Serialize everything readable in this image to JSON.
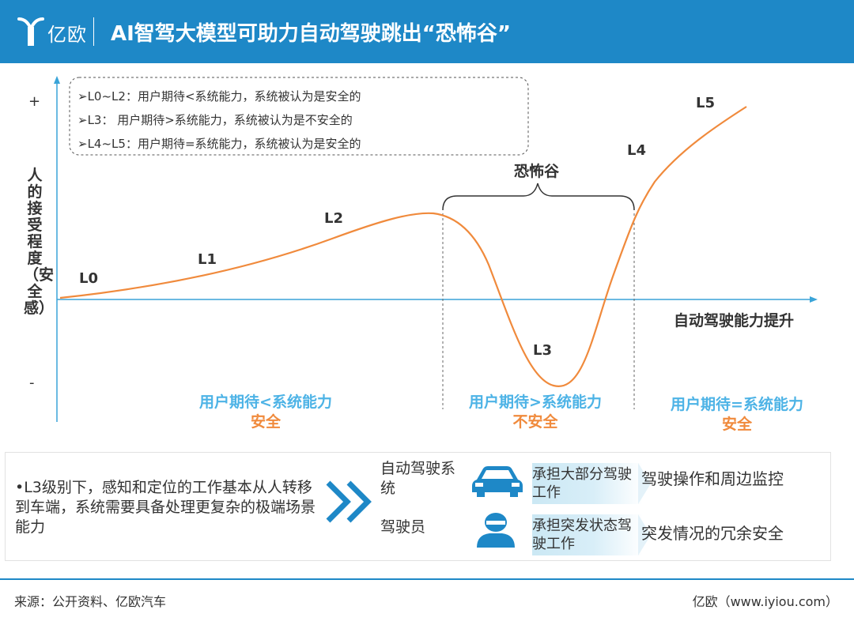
{
  "header": {
    "logo_text": "亿欧",
    "title": "AI智驾大模型可助力自动驾驶跳出“恐怖谷”"
  },
  "chart_data": {
    "type": "line",
    "y_axis": {
      "top_mark": "+",
      "bottom_mark": "-",
      "label": "人的接受程度（安全感）"
    },
    "x_axis": {
      "label": "自动驾驶能力提升"
    },
    "series": [
      {
        "name": "",
        "points": [
          {
            "x": 0,
            "y": 0
          },
          {
            "x": 1,
            "y": 0.6
          },
          {
            "x": 2,
            "y": 1.6
          },
          {
            "x": 2.9,
            "y": 2.0
          },
          {
            "x": 3.3,
            "y": 0.5
          },
          {
            "x": 3.7,
            "y": -2.0
          },
          {
            "x": 4.3,
            "y": -0.5
          },
          {
            "x": 4.7,
            "y": 2.0
          },
          {
            "x": 5.3,
            "y": 4.0
          }
        ]
      }
    ],
    "point_labels": [
      {
        "text": "L0",
        "x": 0.35,
        "y": 0.35
      },
      {
        "text": "L1",
        "x": 1.7,
        "y": 0.85
      },
      {
        "text": "L2",
        "x": 3.05,
        "y": 1.6
      },
      {
        "text": "L3",
        "x": 4.5,
        "y": -1.0
      },
      {
        "text": "L4",
        "x": 6.75,
        "y": 2.9
      },
      {
        "text": "L5",
        "x": 7.55,
        "y": 3.8
      }
    ],
    "legend": [
      "➢L0~L2：用户期待<系统能力，系统被认为是安全的",
      "➢L3：  用户期待>系统能力，系统被认为是不安全的",
      "➢L4~L5：用户期待=系统能力，系统被认为是安全的"
    ],
    "valley_label": "恐怖谷",
    "zones": [
      {
        "expectation": "用户期待<系统能力",
        "verdict": "安全"
      },
      {
        "expectation": "用户期待>系统能力",
        "verdict": "不安全"
      },
      {
        "expectation": "用户期待=系统能力",
        "verdict": "安全"
      }
    ],
    "colors": {
      "curve": "#f08a3c",
      "axis": "#3aa4d8",
      "zone_text": "#4db3e6",
      "verdict": "#f08a3c",
      "text": "#333333"
    }
  },
  "panel": {
    "note": "•L3级别下，感知和定位的工作基本从人转移到车端，系统需要具备处理更复杂的极端场景能力",
    "rows": [
      {
        "role": "自动驾驶系统",
        "icon": "car-icon",
        "task": "承担大部分驾驶工作",
        "desc": "驾驶操作和周边监控"
      },
      {
        "role": "驾驶员",
        "icon": "driver-icon",
        "task": "承担突发状态驾驶工作",
        "desc": "突发情况的冗余安全"
      }
    ]
  },
  "footer": {
    "source": "来源：公开资料、亿欧汽车",
    "credit": "亿欧（www.iyiou.com）"
  }
}
